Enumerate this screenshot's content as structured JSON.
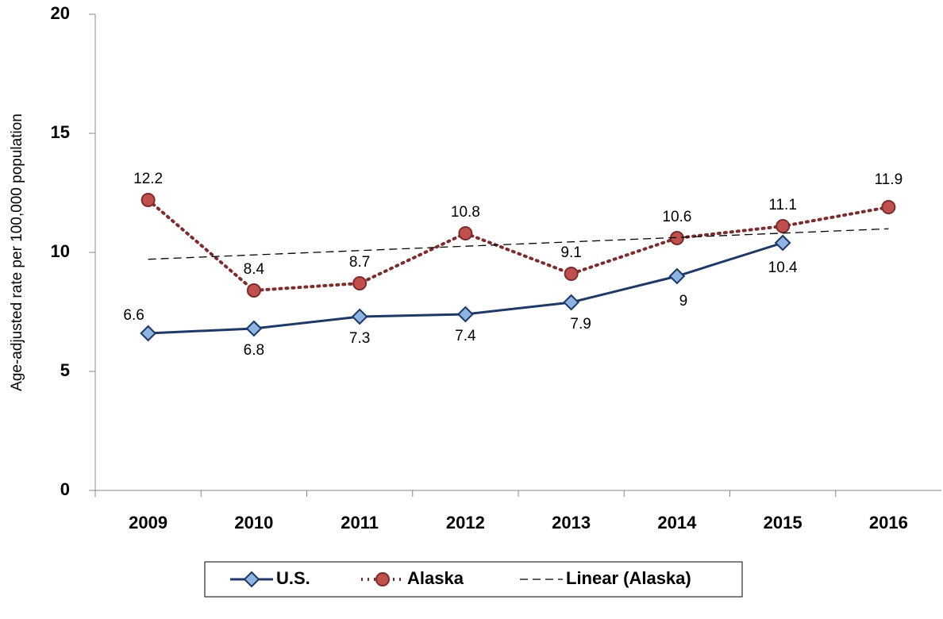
{
  "chart_data": {
    "type": "line",
    "y_label": "Age-adjusted rate per 100,000 population",
    "categories": [
      "2009",
      "2010",
      "2011",
      "2012",
      "2013",
      "2014",
      "2015",
      "2016"
    ],
    "ylim": [
      0,
      20
    ],
    "yticks": [
      0,
      5,
      10,
      15,
      20
    ],
    "series": [
      {
        "name": "U.S.",
        "color": "#1f3864",
        "marker_color": "#8eb4e3",
        "marker": "diamond",
        "line_style": "solid",
        "labels": true,
        "values": [
          6.6,
          6.8,
          7.3,
          7.4,
          7.9,
          9,
          10.4,
          null
        ]
      },
      {
        "name": "Alaska",
        "color": "#7b2c2c",
        "marker_color": "#c0504d",
        "marker": "circle",
        "line_style": "dotted",
        "labels": true,
        "values": [
          12.2,
          8.4,
          8.7,
          10.8,
          9.1,
          10.6,
          11.1,
          11.9
        ]
      },
      {
        "name": "Linear (Alaska)",
        "color": "#000000",
        "marker": "none",
        "line_style": "dashed",
        "labels": false,
        "values": [
          9.71,
          9.89,
          10.08,
          10.26,
          10.44,
          10.63,
          10.81,
          10.99
        ]
      }
    ]
  }
}
